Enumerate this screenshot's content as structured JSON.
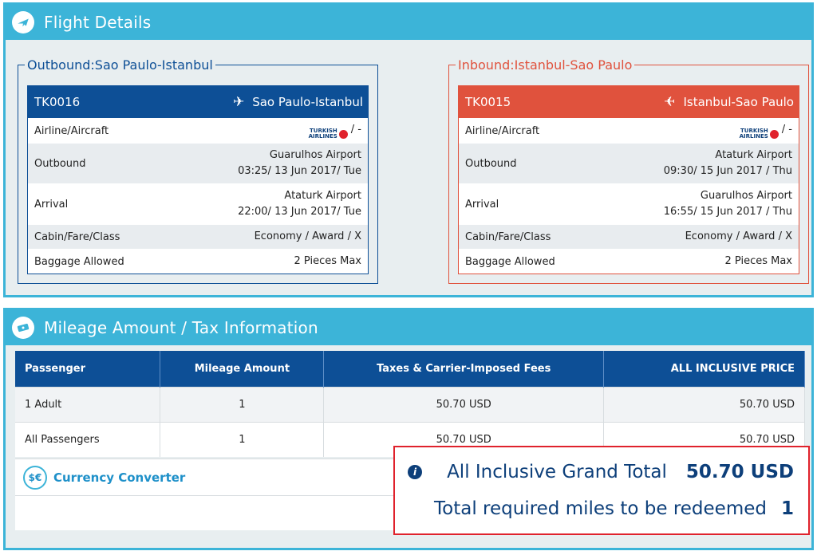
{
  "flight": {
    "title": "Flight Details",
    "outbound": {
      "legend": "Outbound:Sao Paulo-Istanbul",
      "flight_no": "TK0016",
      "route": "Sao Paulo-Istanbul",
      "rows": {
        "airline_label": "Airline/Aircraft",
        "airline_value": "/ -",
        "depart_label": "Outbound",
        "depart_airport": "Guarulhos Airport",
        "depart_time": "03:25/ 13 Jun 2017/ Tue",
        "arrival_label": "Arrival",
        "arrival_airport": "Ataturk Airport",
        "arrival_time": "22:00/ 13 Jun 2017/ Tue",
        "cabin_label": "Cabin/Fare/Class",
        "cabin_value": "Economy / Award / X",
        "baggage_label": "Baggage Allowed",
        "baggage_value": "2 Pieces Max"
      }
    },
    "inbound": {
      "legend": "Inbound:Istanbul-Sao Paulo",
      "flight_no": "TK0015",
      "route": "Istanbul-Sao Paulo",
      "rows": {
        "airline_label": "Airline/Aircraft",
        "airline_value": "/ -",
        "depart_label": "Outbound",
        "depart_airport": "Ataturk Airport",
        "depart_time": "09:30/ 15 Jun 2017 / Thu",
        "arrival_label": "Arrival",
        "arrival_airport": "Guarulhos Airport",
        "arrival_time": "16:55/ 15 Jun 2017 / Thu",
        "cabin_label": "Cabin/Fare/Class",
        "cabin_value": "Economy / Award / X",
        "baggage_label": "Baggage Allowed",
        "baggage_value": "2 Pieces Max"
      }
    },
    "airline_logo_text": [
      "TURKISH",
      "AIRLINES"
    ]
  },
  "mileage": {
    "title": "Mileage Amount / Tax Information",
    "headers": [
      "Passenger",
      "Mileage Amount",
      "Taxes & Carrier-Imposed Fees",
      "ALL INCLUSIVE PRICE"
    ],
    "rows": [
      [
        "1 Adult",
        "1",
        "50.70 USD",
        "50.70 USD"
      ],
      [
        "All Passengers",
        "1",
        "50.70 USD",
        "50.70 USD"
      ]
    ],
    "currency_converter": "Currency Converter"
  },
  "totals": {
    "grand_total_label": "All Inclusive Grand Total",
    "grand_total_value": "50.70 USD",
    "miles_label": "Total required miles to be redeemed",
    "miles_value": "1"
  },
  "colors": {
    "header_bar": "#3cb4d8",
    "outbound": "#0d4f96",
    "inbound": "#e0523d",
    "highlight_border": "#e0222c"
  },
  "icons": {
    "flight_header": "plane-badge-icon",
    "mileage_header": "ticket-icon",
    "route": "airplane-icon",
    "converter": "currency-exchange-icon",
    "info": "info-icon"
  }
}
